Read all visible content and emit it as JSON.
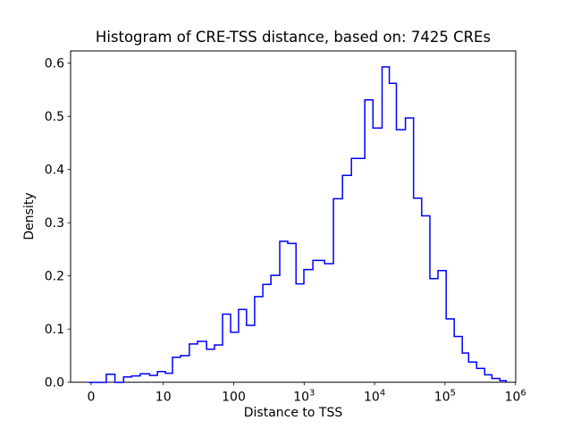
{
  "figure": {
    "title": "Histogram of CRE-TSS distance, based on: 7425 CREs",
    "xlabel": "Distance to TSS",
    "ylabel": "Density"
  },
  "chart_data": {
    "type": "bar",
    "style": "step-outline-histogram",
    "title": "Histogram of CRE-TSS distance, based on: 7425 CREs",
    "xlabel": "Distance to TSS",
    "ylabel": "Density",
    "line_color": "#0000ff",
    "x_scale": "symlog",
    "x_linthresh": 10,
    "ylim": [
      0.0,
      0.623
    ],
    "xlim": [
      -3,
      1000000
    ],
    "grid": false,
    "legend": "none",
    "y_ticks": [
      {
        "value": 0.0,
        "label": "0.0"
      },
      {
        "value": 0.1,
        "label": "0.1"
      },
      {
        "value": 0.2,
        "label": "0.2"
      },
      {
        "value": 0.3,
        "label": "0.3"
      },
      {
        "value": 0.4,
        "label": "0.4"
      },
      {
        "value": 0.5,
        "label": "0.5"
      },
      {
        "value": 0.6,
        "label": "0.6"
      }
    ],
    "x_ticks": [
      {
        "value": 0,
        "label": "0"
      },
      {
        "value": 10,
        "label": "10"
      },
      {
        "value": 100,
        "label": "100"
      },
      {
        "value": 1000,
        "base": "10",
        "exp": "3"
      },
      {
        "value": 10000,
        "base": "10",
        "exp": "4"
      },
      {
        "value": 100000,
        "base": "10",
        "exp": "5"
      },
      {
        "value": 1000000,
        "base": "10",
        "exp": "6"
      }
    ],
    "bin_edges": [
      -0.4,
      2.1,
      3.3,
      4.5,
      5.6,
      6.8,
      8.1,
      9.2,
      10.7,
      13.5,
      17.6,
      23.5,
      30.6,
      41.1,
      53.3,
      69.4,
      90.2,
      117,
      152,
      198,
      259,
      337,
      451,
      586,
      766,
      992,
      1330,
      1950,
      2610,
      3500,
      4690,
      7270,
      9480,
      12800,
      16200,
      20400,
      27400,
      35800,
      46700,
      61000,
      79500,
      104000,
      135000,
      176000,
      216000,
      281000,
      366000,
      462000,
      602000,
      738000
    ],
    "densities": [
      0.0,
      0.015,
      0.0,
      0.01,
      0.012,
      0.016,
      0.013,
      0.02,
      0.017,
      0.047,
      0.05,
      0.072,
      0.077,
      0.062,
      0.07,
      0.128,
      0.094,
      0.137,
      0.107,
      0.161,
      0.184,
      0.201,
      0.265,
      0.261,
      0.185,
      0.212,
      0.229,
      0.223,
      0.345,
      0.389,
      0.421,
      0.531,
      0.478,
      0.593,
      0.562,
      0.475,
      0.497,
      0.346,
      0.313,
      0.195,
      0.21,
      0.119,
      0.086,
      0.055,
      0.038,
      0.026,
      0.014,
      0.007,
      0.003
    ]
  }
}
